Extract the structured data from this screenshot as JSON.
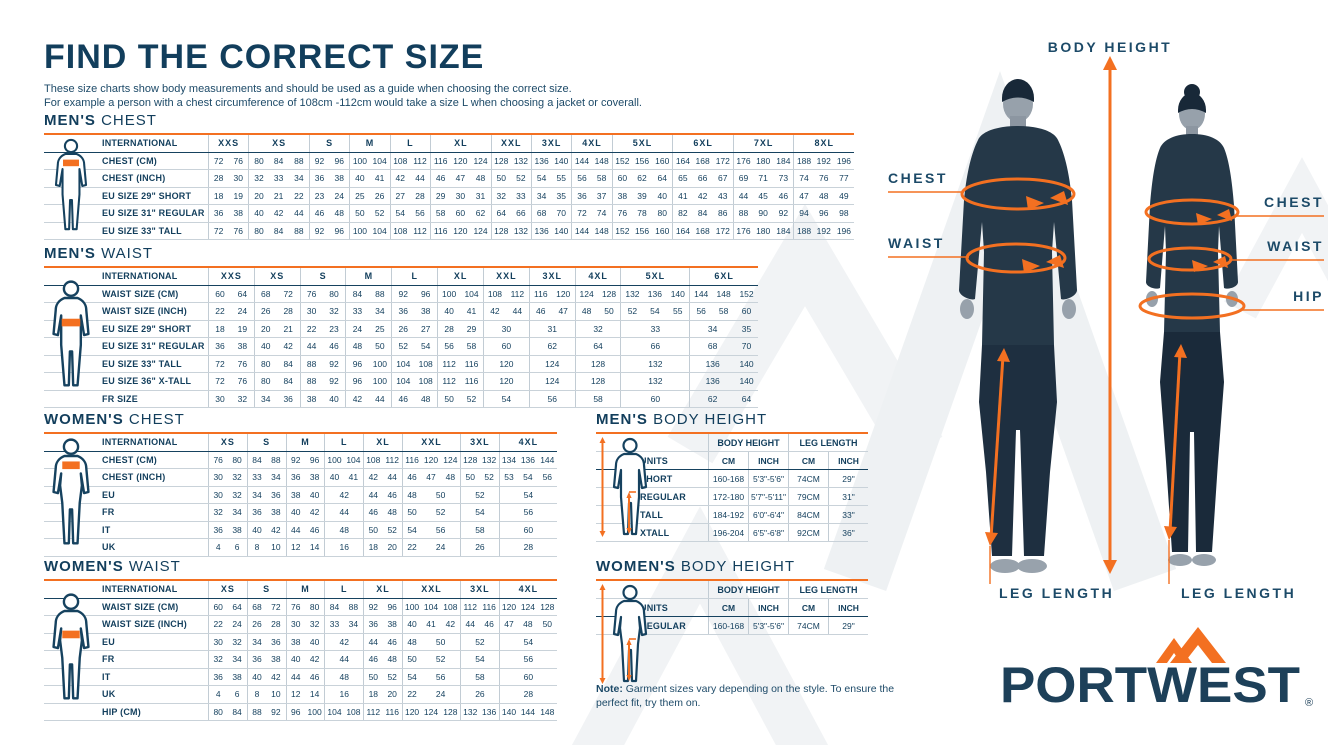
{
  "page": {
    "title": "FIND THE CORRECT SIZE",
    "subtitle_line1": "These size charts show body measurements and should be used as a guide when choosing the correct size.",
    "subtitle_line2": "For example a person with a chest circumference of 108cm -112cm would take a size L when choosing a jacket or coverall."
  },
  "colors": {
    "navy": "#123e5c",
    "orange": "#f37021",
    "row_line": "#c9d2d9",
    "watermark": "#eff2f4"
  },
  "icons": {
    "mens_chest_figure": "male-figure-chest-band-icon",
    "mens_waist_figure": "male-figure-waist-band-icon",
    "womens_chest_figure": "female-figure-chest-band-icon",
    "womens_waist_figure": "female-figure-waist-band-icon",
    "mens_body_height_figure": "male-figure-height-arrows-icon",
    "womens_body_height_figure": "female-figure-height-arrows-icon",
    "logo_mark": "orange-mountain-chevron-icon"
  },
  "tables": {
    "mens_chest": {
      "title_bold": "MEN'S",
      "title_light": "CHEST",
      "international_label": "INTERNATIONAL",
      "sizes": [
        [
          "XXS",
          2
        ],
        [
          "XS",
          3
        ],
        [
          "S",
          2
        ],
        [
          "M",
          2
        ],
        [
          "L",
          2
        ],
        [
          "XL",
          3
        ],
        [
          "XXL",
          2
        ],
        [
          "3XL",
          2
        ],
        [
          "4XL",
          2
        ],
        [
          "5XL",
          3
        ],
        [
          "6XL",
          3
        ],
        [
          "7XL",
          3
        ],
        [
          "8XL",
          3
        ]
      ],
      "rows": [
        {
          "label": "CHEST (CM)",
          "cells": [
            "72",
            "76",
            "80",
            "84",
            "88",
            "92",
            "96",
            "100",
            "104",
            "108",
            "112",
            "116",
            "120",
            "124",
            "128",
            "132",
            "136",
            "140",
            "144",
            "148",
            "152",
            "156",
            "160",
            "164",
            "168",
            "172",
            "176",
            "180",
            "184",
            "188",
            "192",
            "196"
          ]
        },
        {
          "label": "CHEST (INCH)",
          "cells": [
            "28",
            "30",
            "32",
            "33",
            "34",
            "36",
            "38",
            "40",
            "41",
            "42",
            "44",
            "46",
            "47",
            "48",
            "50",
            "52",
            "54",
            "55",
            "56",
            "58",
            "60",
            "62",
            "64",
            "65",
            "66",
            "67",
            "69",
            "71",
            "73",
            "74",
            "76",
            "77"
          ]
        },
        {
          "label": "EU SIZE 29\" SHORT",
          "cells": [
            "18",
            "19",
            "20",
            "21",
            "22",
            "23",
            "24",
            "25",
            "26",
            "27",
            "28",
            "29",
            "30",
            "31",
            "32",
            "33",
            "34",
            "35",
            "36",
            "37",
            "38",
            "39",
            "40",
            "41",
            "42",
            "43",
            "44",
            "45",
            "46",
            "47",
            "48",
            "49"
          ]
        },
        {
          "label": "EU SIZE 31\" REGULAR",
          "cells": [
            "36",
            "38",
            "40",
            "42",
            "44",
            "46",
            "48",
            "50",
            "52",
            "54",
            "56",
            "58",
            "60",
            "62",
            "64",
            "66",
            "68",
            "70",
            "72",
            "74",
            "76",
            "78",
            "80",
            "82",
            "84",
            "86",
            "88",
            "90",
            "92",
            "94",
            "96",
            "98"
          ]
        },
        {
          "label": "EU SIZE 33\" TALL",
          "cells": [
            "72",
            "76",
            "80",
            "84",
            "88",
            "92",
            "96",
            "100",
            "104",
            "108",
            "112",
            "116",
            "120",
            "124",
            "128",
            "132",
            "136",
            "140",
            "144",
            "148",
            "152",
            "156",
            "160",
            "164",
            "168",
            "172",
            "176",
            "180",
            "184",
            "188",
            "192",
            "196"
          ]
        }
      ]
    },
    "mens_waist": {
      "title_bold": "MEN'S",
      "title_light": "WAIST",
      "international_label": "INTERNATIONAL",
      "sizes": [
        [
          "XXS",
          2
        ],
        [
          "XS",
          2
        ],
        [
          "S",
          2
        ],
        [
          "M",
          2
        ],
        [
          "L",
          2
        ],
        [
          "XL",
          2
        ],
        [
          "XXL",
          2
        ],
        [
          "3XL",
          2
        ],
        [
          "4XL",
          2
        ],
        [
          "5XL",
          3
        ],
        [
          "6XL",
          3
        ]
      ],
      "rows": [
        {
          "label": "WAIST SIZE (CM)",
          "cells": [
            "60",
            "64",
            "68",
            "72",
            "76",
            "80",
            "84",
            "88",
            "92",
            "96",
            "100",
            "104",
            "108",
            "112",
            "116",
            "120",
            "124",
            "128",
            "132",
            "136",
            "140",
            "144",
            "148",
            "152"
          ]
        },
        {
          "label": "WAIST SIZE (INCH)",
          "cells": [
            "22",
            "24",
            "26",
            "28",
            "30",
            "32",
            "33",
            "34",
            "36",
            "38",
            "40",
            "41",
            "42",
            "44",
            "46",
            "47",
            "48",
            "50",
            "52",
            "54",
            "55",
            "56",
            "58",
            "60"
          ]
        },
        {
          "label": "EU SIZE 29\" SHORT",
          "cells": [
            "18",
            "19",
            "20",
            "21",
            "22",
            "23",
            "24",
            "25",
            "26",
            "27",
            "28",
            "29",
            [
              "30",
              2
            ],
            [
              "31",
              2
            ],
            [
              "32",
              2
            ],
            [
              "33",
              3
            ],
            [
              "34",
              2
            ],
            [
              "35",
              1
            ]
          ]
        },
        {
          "label": "EU SIZE 31\" REGULAR",
          "cells": [
            "36",
            "38",
            "40",
            "42",
            "44",
            "46",
            "48",
            "50",
            "52",
            "54",
            "56",
            "58",
            [
              "60",
              2
            ],
            [
              "62",
              2
            ],
            [
              "64",
              2
            ],
            [
              "66",
              3
            ],
            [
              "68",
              2
            ],
            [
              "70",
              1
            ]
          ]
        },
        {
          "label": "EU SIZE 33\" TALL",
          "cells": [
            "72",
            "76",
            "80",
            "84",
            "88",
            "92",
            "96",
            "100",
            "104",
            "108",
            "112",
            "116",
            [
              "120",
              2
            ],
            [
              "124",
              2
            ],
            [
              "128",
              2
            ],
            [
              "132",
              3
            ],
            [
              "136",
              2
            ],
            [
              "140",
              1
            ]
          ]
        },
        {
          "label": "EU SIZE 36\" X-TALL",
          "cells": [
            "72",
            "76",
            "80",
            "84",
            "88",
            "92",
            "96",
            "100",
            "104",
            "108",
            "112",
            "116",
            [
              "120",
              2
            ],
            [
              "124",
              2
            ],
            [
              "128",
              2
            ],
            [
              "132",
              3
            ],
            [
              "136",
              2
            ],
            [
              "140",
              1
            ]
          ]
        },
        {
          "label": "FR SIZE",
          "cells": [
            "30",
            "32",
            "34",
            "36",
            "38",
            "40",
            "42",
            "44",
            "46",
            "48",
            "50",
            "52",
            [
              "54",
              2
            ],
            [
              "56",
              2
            ],
            [
              "58",
              2
            ],
            [
              "60",
              3
            ],
            [
              "62",
              2
            ],
            [
              "64",
              1
            ]
          ]
        }
      ]
    },
    "womens_chest": {
      "title_bold": "WOMEN'S",
      "title_light": "CHEST",
      "international_label": "INTERNATIONAL",
      "sizes": [
        [
          "XS",
          2
        ],
        [
          "S",
          2
        ],
        [
          "M",
          2
        ],
        [
          "L",
          2
        ],
        [
          "XL",
          2
        ],
        [
          "XXL",
          3
        ],
        [
          "3XL",
          2
        ],
        [
          "4XL",
          3
        ]
      ],
      "rows": [
        {
          "label": "CHEST (CM)",
          "cells": [
            "76",
            "80",
            "84",
            "88",
            "92",
            "96",
            "100",
            "104",
            "108",
            "112",
            "116",
            "120",
            "124",
            "128",
            "132",
            "134",
            "136",
            "144"
          ]
        },
        {
          "label": "CHEST (INCH)",
          "cells": [
            "30",
            "32",
            "33",
            "34",
            "36",
            "38",
            "40",
            "41",
            "42",
            "44",
            "46",
            "47",
            "48",
            "50",
            "52",
            "53",
            "54",
            "56"
          ]
        },
        {
          "label": "EU",
          "cells": [
            "30",
            "32",
            "34",
            "36",
            "38",
            "40",
            [
              "42",
              2
            ],
            "44",
            "46",
            "48",
            [
              "50",
              2
            ],
            [
              "52",
              2
            ],
            [
              "54",
              3
            ]
          ]
        },
        {
          "label": "FR",
          "cells": [
            "32",
            "34",
            "36",
            "38",
            "40",
            "42",
            [
              "44",
              2
            ],
            "46",
            "48",
            "50",
            [
              "52",
              2
            ],
            [
              "54",
              2
            ],
            [
              "56",
              3
            ]
          ]
        },
        {
          "label": "IT",
          "cells": [
            "36",
            "38",
            "40",
            "42",
            "44",
            "46",
            [
              "48",
              2
            ],
            "50",
            "52",
            "54",
            [
              "56",
              2
            ],
            [
              "58",
              2
            ],
            [
              "60",
              3
            ]
          ]
        },
        {
          "label": "UK",
          "cells": [
            "4",
            "6",
            "8",
            "10",
            "12",
            "14",
            [
              "16",
              2
            ],
            "18",
            "20",
            "22",
            [
              "24",
              2
            ],
            [
              "26",
              2
            ],
            [
              "28",
              3
            ]
          ]
        }
      ]
    },
    "womens_waist": {
      "title_bold": "WOMEN'S",
      "title_light": "WAIST",
      "international_label": "INTERNATIONAL",
      "sizes": [
        [
          "XS",
          2
        ],
        [
          "S",
          2
        ],
        [
          "M",
          2
        ],
        [
          "L",
          2
        ],
        [
          "XL",
          2
        ],
        [
          "XXL",
          3
        ],
        [
          "3XL",
          2
        ],
        [
          "4XL",
          3
        ]
      ],
      "rows": [
        {
          "label": "WAIST SIZE (CM)",
          "cells": [
            "60",
            "64",
            "68",
            "72",
            "76",
            "80",
            "84",
            "88",
            "92",
            "96",
            "100",
            "104",
            "108",
            "112",
            "116",
            "120",
            "124",
            "128"
          ]
        },
        {
          "label": "WAIST SIZE (INCH)",
          "cells": [
            "22",
            "24",
            "26",
            "28",
            "30",
            "32",
            "33",
            "34",
            "36",
            "38",
            "40",
            "41",
            "42",
            "44",
            "46",
            "47",
            "48",
            "50"
          ]
        },
        {
          "label": "EU",
          "cells": [
            "30",
            "32",
            "34",
            "36",
            "38",
            "40",
            [
              "42",
              2
            ],
            "44",
            "46",
            "48",
            [
              "50",
              2
            ],
            [
              "52",
              2
            ],
            [
              "54",
              3
            ]
          ]
        },
        {
          "label": "FR",
          "cells": [
            "32",
            "34",
            "36",
            "38",
            "40",
            "42",
            [
              "44",
              2
            ],
            "46",
            "48",
            "50",
            [
              "52",
              2
            ],
            [
              "54",
              2
            ],
            [
              "56",
              3
            ]
          ]
        },
        {
          "label": "IT",
          "cells": [
            "36",
            "38",
            "40",
            "42",
            "44",
            "46",
            [
              "48",
              2
            ],
            "50",
            "52",
            "54",
            [
              "56",
              2
            ],
            [
              "58",
              2
            ],
            [
              "60",
              3
            ]
          ]
        },
        {
          "label": "UK",
          "cells": [
            "4",
            "6",
            "8",
            "10",
            "12",
            "14",
            [
              "16",
              2
            ],
            "18",
            "20",
            "22",
            [
              "24",
              2
            ],
            [
              "26",
              2
            ],
            [
              "28",
              3
            ]
          ]
        },
        {
          "label": "HIP (CM)",
          "cells": [
            "80",
            "84",
            "88",
            "92",
            "96",
            "100",
            "104",
            "108",
            "112",
            "116",
            "120",
            "124",
            "128",
            "132",
            "136",
            "140",
            "144",
            "148"
          ]
        }
      ]
    }
  },
  "body_height_tables": {
    "mens": {
      "title_bold": "MEN'S",
      "title_light": "BODY HEIGHT",
      "group_headers": [
        "BODY HEIGHT",
        "LEG LENGTH"
      ],
      "units_label": "UNITS",
      "sub_headers": [
        "CM",
        "INCH",
        "CM",
        "INCH"
      ],
      "rows": [
        {
          "label": "SHORT",
          "cells": [
            "160-168",
            "5'3\"-5'6\"",
            "74CM",
            "29\""
          ]
        },
        {
          "label": "REGULAR",
          "cells": [
            "172-180",
            "5'7\"-5'11\"",
            "79CM",
            "31\""
          ]
        },
        {
          "label": "TALL",
          "cells": [
            "184-192",
            "6'0\"-6'4\"",
            "84CM",
            "33\""
          ]
        },
        {
          "label": "XTALL",
          "cells": [
            "196-204",
            "6'5\"-6'8\"",
            "92CM",
            "36\""
          ]
        }
      ]
    },
    "womens": {
      "title_bold": "WOMEN'S",
      "title_light": "BODY HEIGHT",
      "group_headers": [
        "BODY HEIGHT",
        "LEG LENGTH"
      ],
      "units_label": "UNITS",
      "sub_headers": [
        "CM",
        "INCH",
        "CM",
        "INCH"
      ],
      "rows": [
        {
          "label": "REGULAR",
          "cells": [
            "160-168",
            "5'3\"-5'6\"",
            "74CM",
            "29\""
          ]
        }
      ]
    }
  },
  "note": {
    "bold": "Note:",
    "text": " Garment sizes vary depending on the style. To ensure the perfect fit, try them on."
  },
  "figure_labels": {
    "body_height": "BODY HEIGHT",
    "chest_left": "CHEST",
    "waist_left": "WAIST",
    "chest_right": "CHEST",
    "waist_right": "WAIST",
    "hip_right": "HIP",
    "leg_length_left": "LEG LENGTH",
    "leg_length_right": "LEG LENGTH"
  },
  "logo": {
    "text": "PORTWEST",
    "registered": "®"
  }
}
